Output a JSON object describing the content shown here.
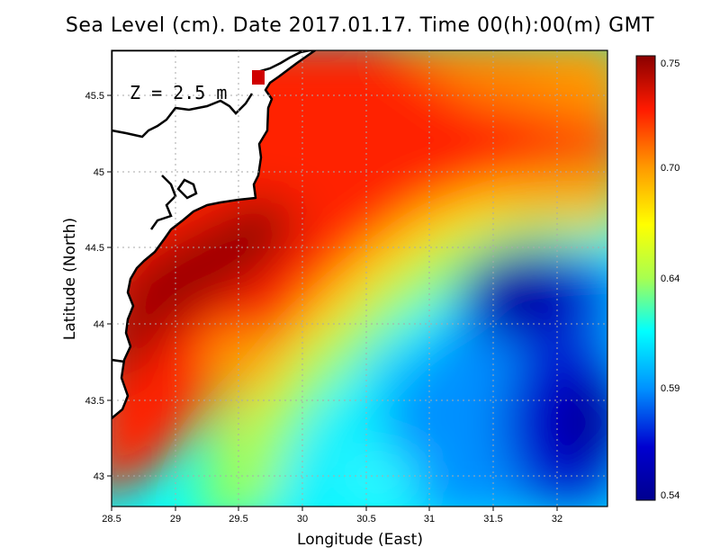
{
  "title": "Sea Level (cm). Date 2017.01.17. Time 00(h):00(m) GMT",
  "annotation": "Z = 2.5 m",
  "colorbar": {
    "labels": [
      "0.75",
      "0.70",
      "0.64",
      "0.59",
      "0.54"
    ],
    "colors": [
      "#8a0000",
      "#ff1a00",
      "#ff9900",
      "#ffff00",
      "#a8ff50",
      "#00ffff",
      "#0090ff",
      "#0000d0",
      "#00008f"
    ]
  },
  "chart_data": {
    "type": "heatmap",
    "title": "Sea Level (cm). Date 2017.01.17. Time 00(h):00(m) GMT",
    "xlabel": "Longitude (East)",
    "ylabel": "Latitude (North)",
    "xlim": [
      28.5,
      32.4
    ],
    "ylim": [
      42.8,
      45.8
    ],
    "x_ticks": [
      "28.5",
      "29",
      "29.5",
      "30",
      "30.5",
      "31",
      "31.5",
      "32"
    ],
    "y_ticks": [
      "43",
      "43.5",
      "44",
      "44.5",
      "45",
      "45.5"
    ],
    "value_range": [
      0.54,
      0.75
    ],
    "grid": true,
    "colorbar_position": "right",
    "land_color": "#ffffff",
    "coastline_color": "#000000"
  }
}
